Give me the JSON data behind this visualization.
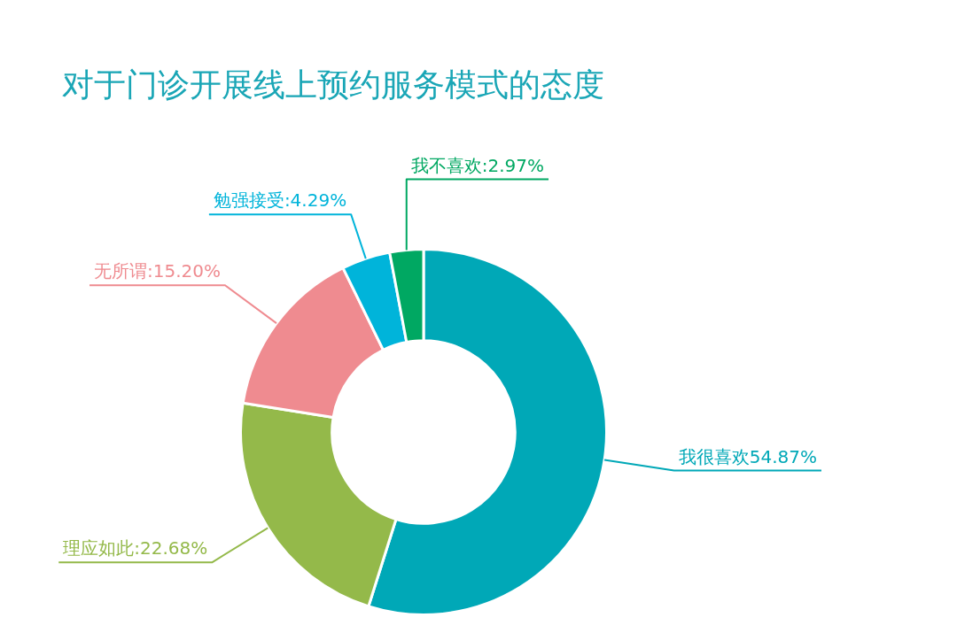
{
  "chart_data": {
    "type": "donut",
    "title": "对于门诊开展线上预约服务模式的态度",
    "categories": [
      "我很喜欢",
      "理应如此",
      "无所谓",
      "勉强接受",
      "我不喜欢"
    ],
    "values": [
      54.87,
      22.68,
      15.2,
      4.29,
      2.97
    ],
    "colors": [
      "#00a8b7",
      "#94b94a",
      "#ef8b90",
      "#00b4da",
      "#00a862"
    ],
    "value_labels": [
      "54.87%",
      ":22.68%",
      ":15.20%",
      ":4.29%",
      ":2.97%"
    ],
    "legend": false
  }
}
